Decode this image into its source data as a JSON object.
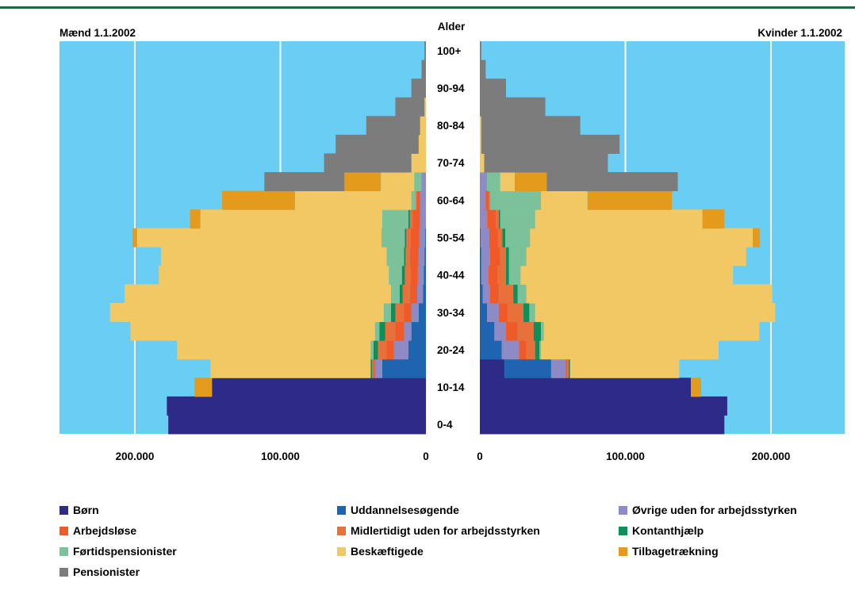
{
  "chart_data": {
    "type": "bar",
    "subtype": "population-pyramid-stacked",
    "left_title": "Mænd 1.1.2002",
    "right_title": "Kvinder 1.1.2002",
    "center_title": "Alder",
    "age_groups": [
      "0-4",
      "5-9",
      "10-14",
      "15-19",
      "20-24",
      "25-29",
      "30-34",
      "35-39",
      "40-44",
      "45-49",
      "50-54",
      "55-59",
      "60-64",
      "65-69",
      "70-74",
      "75-79",
      "80-84",
      "85-89",
      "90-94",
      "95-99",
      "100+"
    ],
    "age_labels_shown": [
      "0-4",
      "10-14",
      "20-24",
      "30-34",
      "40-44",
      "50-54",
      "60-64",
      "70-74",
      "80-84",
      "90-94",
      "100+"
    ],
    "x_ticks_left": [
      {
        "value": 200000,
        "label": "200.000"
      },
      {
        "value": 100000,
        "label": "100.000"
      },
      {
        "value": 0,
        "label": "0"
      }
    ],
    "x_ticks_right": [
      {
        "value": 0,
        "label": "0"
      },
      {
        "value": 100000,
        "label": "100.000"
      },
      {
        "value": 200000,
        "label": "200.000"
      }
    ],
    "xlim": [
      0,
      250000
    ],
    "background_color": "#6acdf3",
    "gridlines": [
      100000,
      200000
    ],
    "categories": [
      "Børn",
      "Uddannelsesøgende",
      "Øvrige uden for arbejdsstyrken",
      "Arbejdsløse",
      "Midlertidigt uden for arbejdsstyrken",
      "Kontanthjælp",
      "Førtidspensionister",
      "Beskæftigede",
      "Tilbagetrækning",
      "Pensionister"
    ],
    "colors": [
      "#2e2a87",
      "#1f64ae",
      "#8e8ac5",
      "#f05a28",
      "#e8703a",
      "#0d8f5a",
      "#7bc29a",
      "#f2c864",
      "#e49a1c",
      "#7c7c7c"
    ],
    "men": {
      "Børn": [
        177000,
        178000,
        147000,
        0,
        0,
        0,
        0,
        0,
        0,
        0,
        0,
        0,
        0,
        0,
        0,
        0,
        0,
        0,
        0,
        0,
        0
      ],
      "Uddannelsesøgende": [
        0,
        0,
        0,
        30000,
        12000,
        10000,
        5000,
        2000,
        1500,
        1000,
        500,
        0,
        0,
        0,
        0,
        0,
        0,
        0,
        0,
        0,
        0
      ],
      "Øvrige uden for arbejdsstyrken": [
        0,
        0,
        0,
        5000,
        10000,
        5000,
        5000,
        4000,
        4000,
        4000,
        4000,
        4000,
        4000,
        3000,
        0,
        0,
        0,
        0,
        0,
        0,
        0
      ],
      "Arbejdsløse": [
        0,
        0,
        0,
        1000,
        5000,
        6000,
        5000,
        5000,
        5000,
        6000,
        6000,
        5000,
        2000,
        0,
        0,
        0,
        0,
        0,
        0,
        0,
        0
      ],
      "Midlertidigt uden for arbejdsstyrken": [
        0,
        0,
        0,
        1000,
        6000,
        7000,
        6000,
        5000,
        4000,
        3000,
        3000,
        2000,
        1000,
        0,
        0,
        0,
        0,
        0,
        0,
        0,
        0
      ],
      "Kontanthjælp": [
        0,
        0,
        0,
        1000,
        3000,
        4000,
        3000,
        2000,
        2000,
        1000,
        1000,
        1000,
        0,
        0,
        0,
        0,
        0,
        0,
        0,
        0,
        0
      ],
      "Førtidspensionister": [
        0,
        0,
        0,
        0,
        2000,
        3000,
        5000,
        6000,
        9000,
        12000,
        16000,
        18000,
        3000,
        5000,
        0,
        0,
        0,
        0,
        0,
        0,
        0
      ],
      "Beskæftigede": [
        0,
        0,
        0,
        110000,
        133000,
        168000,
        188000,
        183000,
        158000,
        155000,
        168000,
        125000,
        80000,
        23000,
        10000,
        5000,
        4000,
        1000,
        0,
        0,
        0
      ],
      "Tilbagetrækning": [
        0,
        0,
        12000,
        0,
        0,
        0,
        0,
        0,
        0,
        0,
        3000,
        7000,
        50000,
        25000,
        0,
        0,
        0,
        0,
        0,
        0,
        0
      ],
      "Pensionister": [
        0,
        0,
        0,
        0,
        0,
        0,
        0,
        0,
        0,
        0,
        0,
        0,
        0,
        55000,
        60000,
        57000,
        37000,
        20000,
        10000,
        3000,
        1000
      ]
    },
    "women": {
      "Børn": [
        168000,
        170000,
        145000,
        17000,
        0,
        0,
        0,
        0,
        0,
        0,
        0,
        0,
        0,
        0,
        0,
        0,
        0,
        0,
        0,
        0,
        0
      ],
      "Uddannelsesøgende": [
        0,
        0,
        0,
        32000,
        15000,
        10000,
        5000,
        2000,
        1000,
        1000,
        500,
        0,
        0,
        0,
        0,
        0,
        0,
        0,
        0,
        0,
        0
      ],
      "Øvrige uden for arbejdsstyrken": [
        0,
        0,
        0,
        10000,
        12000,
        8000,
        8000,
        5000,
        5000,
        6000,
        6000,
        5000,
        4000,
        5000,
        0,
        0,
        0,
        0,
        0,
        0,
        0
      ],
      "Arbejdsløse": [
        0,
        0,
        0,
        1000,
        5000,
        8000,
        6000,
        6000,
        6000,
        7000,
        6000,
        6000,
        2000,
        0,
        0,
        0,
        0,
        0,
        0,
        0,
        0
      ],
      "Midlertidigt uden for arbejdsstyrken": [
        0,
        0,
        0,
        1000,
        6000,
        11000,
        11000,
        10000,
        6000,
        4000,
        3000,
        2000,
        1000,
        0,
        0,
        0,
        0,
        0,
        0,
        0,
        0
      ],
      "Kontanthjælp": [
        0,
        0,
        0,
        1000,
        3000,
        5000,
        4000,
        3000,
        2000,
        2000,
        2000,
        1000,
        0,
        0,
        0,
        0,
        0,
        0,
        0,
        0,
        0
      ],
      "Førtidspensionister": [
        0,
        0,
        0,
        0,
        1000,
        2000,
        4000,
        6000,
        8000,
        12000,
        17000,
        24000,
        35000,
        9000,
        0,
        0,
        0,
        0,
        0,
        0,
        0
      ],
      "Beskæftigede": [
        0,
        0,
        0,
        75000,
        122000,
        148000,
        165000,
        169000,
        146000,
        151000,
        153000,
        115000,
        32000,
        10000,
        3000,
        1000,
        1000,
        0,
        0,
        0,
        0
      ],
      "Tilbagetrækning": [
        0,
        0,
        7000,
        0,
        0,
        0,
        0,
        0,
        0,
        0,
        5000,
        15000,
        58000,
        22000,
        0,
        0,
        0,
        0,
        0,
        0,
        0
      ],
      "Pensionister": [
        0,
        0,
        0,
        0,
        0,
        0,
        0,
        0,
        0,
        0,
        0,
        0,
        0,
        90000,
        85000,
        95000,
        68000,
        45000,
        18000,
        4000,
        1000
      ]
    }
  },
  "legend": [
    {
      "label": "Børn",
      "color": "#2e2a87"
    },
    {
      "label": "Uddannelsesøgende",
      "color": "#1f64ae"
    },
    {
      "label": "Øvrige uden for arbejdsstyrken",
      "color": "#8e8ac5"
    },
    {
      "label": "Arbejdsløse",
      "color": "#f05a28"
    },
    {
      "label": "Midlertidigt uden for arbejdsstyrken",
      "color": "#e8703a"
    },
    {
      "label": "Kontanthjælp",
      "color": "#0d8f5a"
    },
    {
      "label": "Førtidspensionister",
      "color": "#7bc29a"
    },
    {
      "label": "Beskæftigede",
      "color": "#f2c864"
    },
    {
      "label": "Tilbagetrækning",
      "color": "#e49a1c"
    },
    {
      "label": "Pensionister",
      "color": "#7c7c7c"
    }
  ]
}
